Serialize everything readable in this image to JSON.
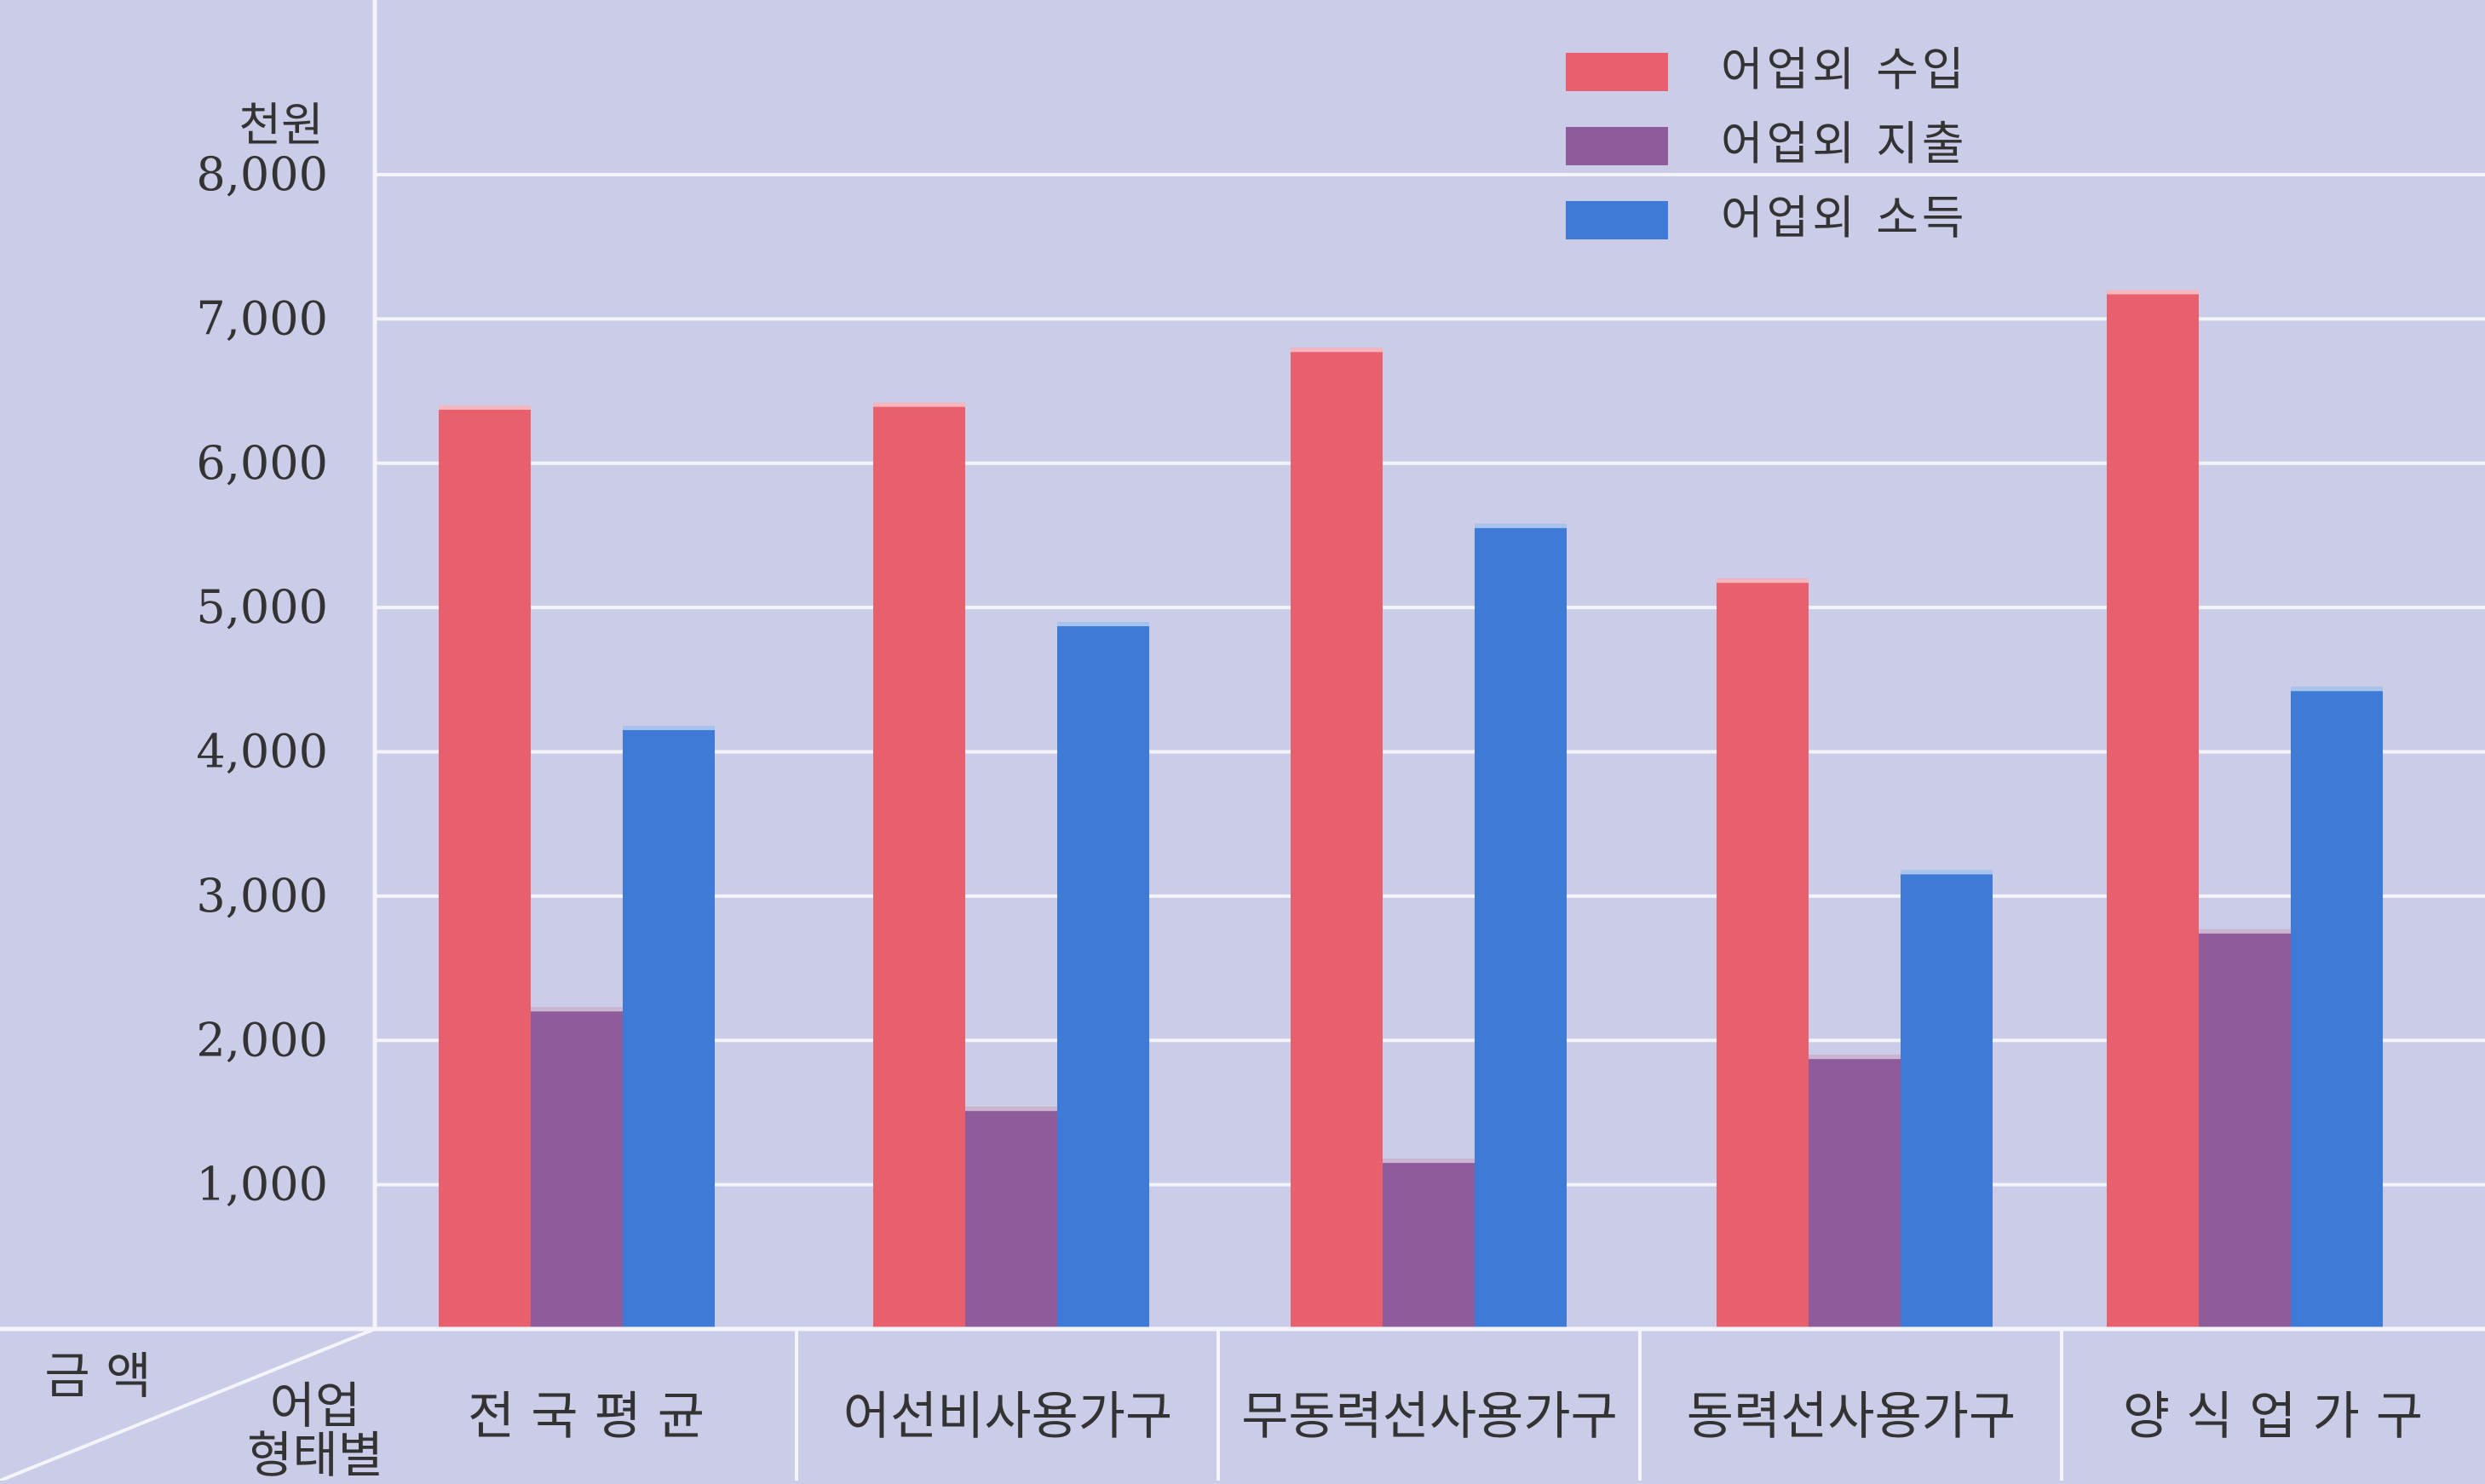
{
  "chart_data": {
    "type": "bar",
    "ylabel": "천원",
    "ylim": [
      0,
      8000
    ],
    "yticks": [
      "8,000",
      "7,000",
      "6,000",
      "5,000",
      "4,000",
      "3,000",
      "2,000",
      "1,000"
    ],
    "ytick_values": [
      8000,
      7000,
      6000,
      5000,
      4000,
      3000,
      2000,
      1000
    ],
    "corner_label_top": "금 액",
    "corner_label_bottom_1": "어업",
    "corner_label_bottom_2": "형태별",
    "categories": [
      "전 국 평 균",
      "어선비사용가구",
      "무동력선사용가구",
      "동력선사용가구",
      "양 식 업 가 구"
    ],
    "series": [
      {
        "name": "어업외 수입",
        "color": "#e8606e",
        "values": [
          6400,
          6420,
          6800,
          5200,
          7200
        ]
      },
      {
        "name": "어업외 지출",
        "color": "#8e5c9a",
        "values": [
          2230,
          1540,
          1180,
          1900,
          2770
        ]
      },
      {
        "name": "어업외 소득",
        "color": "#3f7bd6",
        "values": [
          4180,
          4900,
          5580,
          3180,
          4450
        ]
      }
    ],
    "legend_position": "top-right",
    "grid": true
  }
}
